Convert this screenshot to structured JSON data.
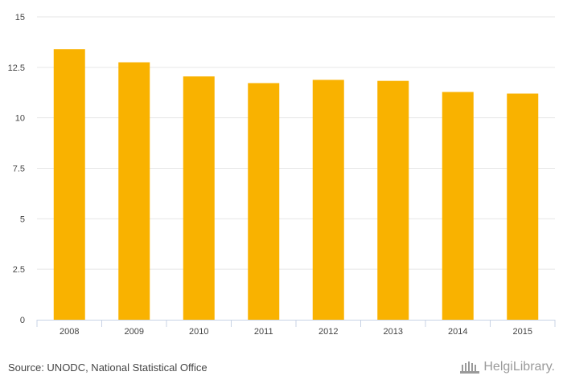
{
  "chart_data": {
    "type": "bar",
    "categories": [
      "2008",
      "2009",
      "2010",
      "2011",
      "2012",
      "2013",
      "2014",
      "2015"
    ],
    "values": [
      13.4,
      12.75,
      12.05,
      11.72,
      11.88,
      11.83,
      11.28,
      11.2
    ],
    "title": "",
    "xlabel": "",
    "ylabel": "",
    "ylim": [
      0,
      15
    ],
    "yticks": [
      "0",
      "2.5",
      "5",
      "7.5",
      "10",
      "12.5",
      "15"
    ],
    "grid": true,
    "bar_color": "#F9B200",
    "grid_color": "#e6e6e6",
    "axis_color": "#c8d3e6"
  },
  "footer": {
    "source": "Source: UNODC, National Statistical Office",
    "logo_text": "HelgiLibrary."
  }
}
